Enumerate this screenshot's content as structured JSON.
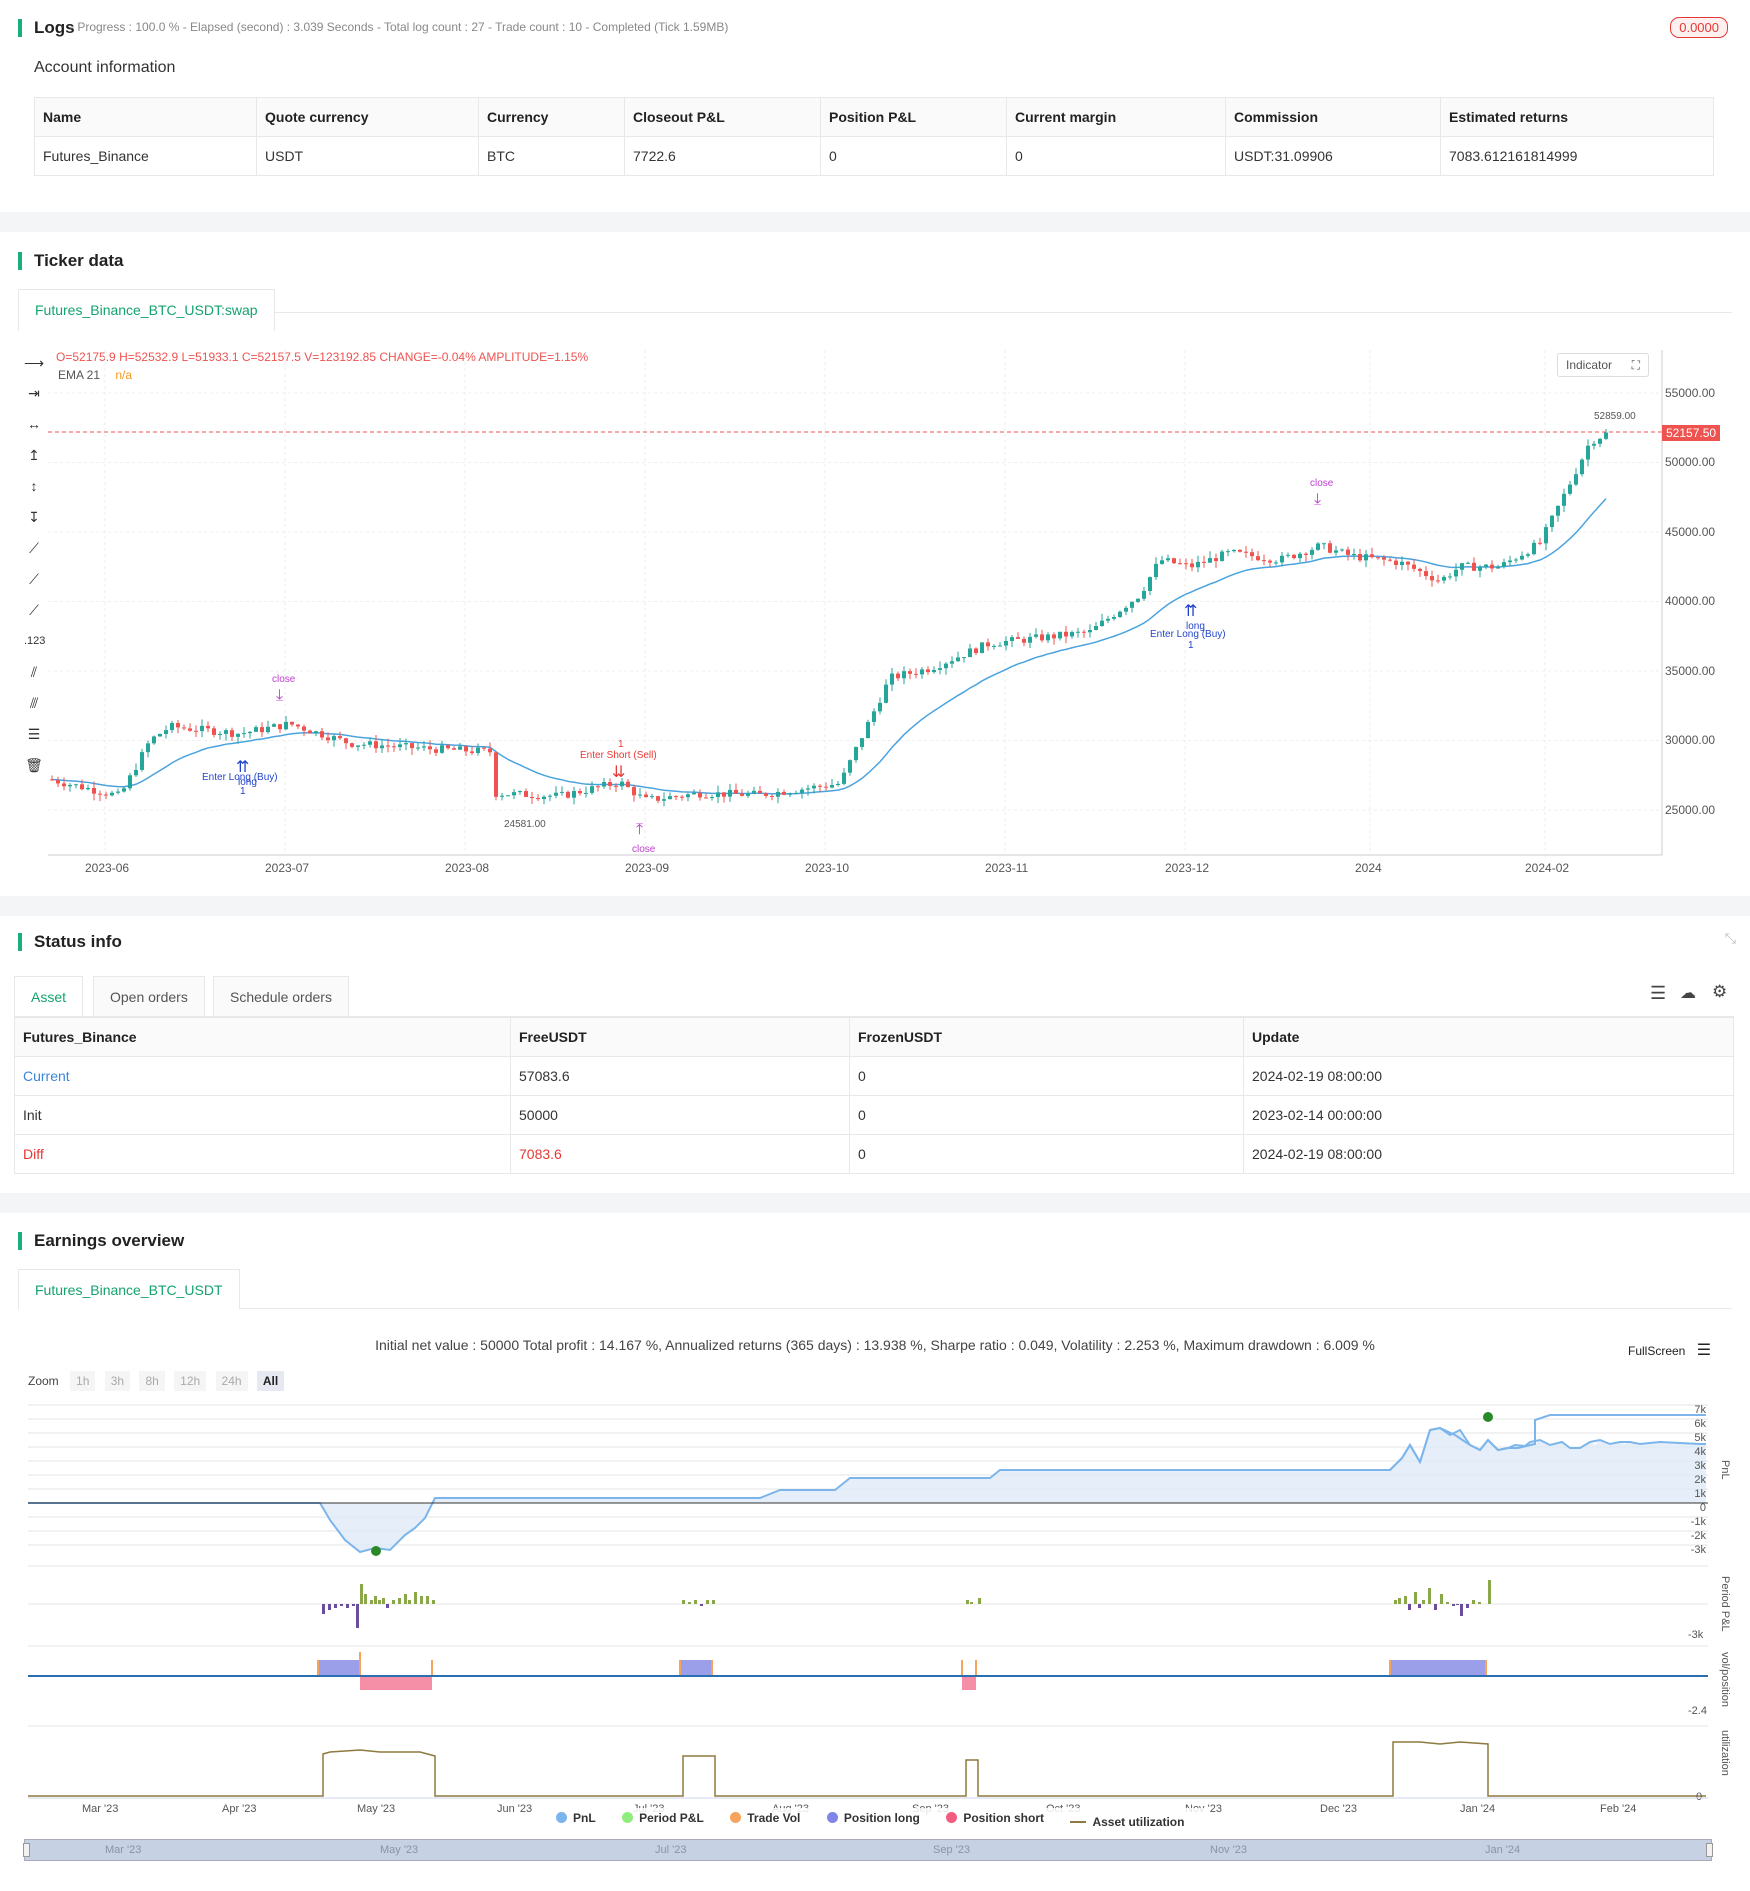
{
  "logs": {
    "title": "Logs",
    "status_line": "- Progress : 100.0 % - Elapsed (second) : 3.039  Seconds - Total log count : 27 - Trade count : 10 - Completed (Tick 1.59MB)",
    "badge": "0.0000",
    "account_title": "Account information",
    "columns": [
      "Name",
      "Quote currency",
      "Currency",
      "Closeout P&L",
      "Position P&L",
      "Current margin",
      "Commission",
      "Estimated returns"
    ],
    "row": [
      "Futures_Binance",
      "USDT",
      "BTC",
      "7722.6",
      "0",
      "0",
      "USDT:31.09906",
      "7083.612161814999"
    ]
  },
  "ticker": {
    "title": "Ticker data",
    "tab": "Futures_Binance_BTC_USDT:swap",
    "ohlc": {
      "o": "O=52175.9",
      "h": "H=52532.9",
      "l": "L=51933.1",
      "c": "C=52157.5",
      "v": "V=123192.85",
      "change": "CHANGE=-0.04%",
      "amplitude": "AMPLITUDE=1.15%"
    },
    "ema_label": "EMA 21",
    "ema_value": "n/a",
    "indicator_btn": "Indicator",
    "price_tag": "52157.50",
    "high_mark": "52859.00",
    "low_mark": "24581.00",
    "y_ticks": [
      "55000.00",
      "50000.00",
      "45000.00",
      "40000.00",
      "35000.00",
      "30000.00",
      "25000.00"
    ],
    "x_ticks": [
      "2023-06",
      "2023-07",
      "2023-08",
      "2023-09",
      "2023-10",
      "2023-11",
      "2023-12",
      "2024",
      "2024-02"
    ],
    "annotations": {
      "close1": "close",
      "enter_long1": "Enter Long (Buy)",
      "long1": "long",
      "one1": "1",
      "enter_short": "Enter Short (Sell)",
      "short_one": "1",
      "close2": "close",
      "close3": "close",
      "enter_long2": "Enter Long (Buy)",
      "long2": "long",
      "one2": "1"
    },
    "colors": {
      "up": "#26a69a",
      "down": "#ef5350",
      "ema": "#4aa3df",
      "price_line": "#ef5350"
    }
  },
  "status": {
    "title": "Status info",
    "tabs": [
      "Asset",
      "Open orders",
      "Schedule orders"
    ],
    "columns": [
      "Futures_Binance",
      "FreeUSDT",
      "FrozenUSDT",
      "Update"
    ],
    "rows": [
      [
        "Current",
        "57083.6",
        "0",
        "2024-02-19 08:00:00"
      ],
      [
        "Init",
        "50000",
        "0",
        "2023-02-14 00:00:00"
      ],
      [
        "Diff",
        "7083.6",
        "0",
        "2024-02-19 08:00:00"
      ]
    ]
  },
  "earnings": {
    "title": "Earnings overview",
    "tab": "Futures_Binance_BTC_USDT",
    "summary": "Initial net value : 50000 Total profit : 14.167 %, Annualized returns (365 days) : 13.938 %, Sharpe ratio : 0.049, Volatility : 2.253 %, Maximum drawdown : 6.009 %",
    "fullscreen": "FullScreen",
    "zoom_label": "Zoom",
    "zoom_options": [
      "1h",
      "3h",
      "8h",
      "12h",
      "24h",
      "All"
    ],
    "pnl_ticks": [
      "7k",
      "6k",
      "5k",
      "4k",
      "3k",
      "2k",
      "1k",
      "0",
      "-1k",
      "-2k",
      "-3k"
    ],
    "axis_titles": {
      "pnl": "PnL",
      "period": "Period P&L",
      "vol": "vol/position",
      "util": "utilization"
    },
    "period_min": "-3k",
    "vol_min": "-2.4",
    "util_zero": "0",
    "x_ticks": [
      "Mar '23",
      "Apr '23",
      "May '23",
      "Jun '23",
      "Jul '23",
      "Aug '23",
      "Sep '23",
      "Oct '23",
      "Nov '23",
      "Dec '23",
      "Jan '24",
      "Feb '24"
    ],
    "nav_ticks": [
      "Mar '23",
      "May '23",
      "Jul '23",
      "Sep '23",
      "Nov '23",
      "Jan '24"
    ],
    "legend": [
      {
        "label": "PnL",
        "color": "#7cb5ec"
      },
      {
        "label": "Period P&L",
        "color": "#90ed7d"
      },
      {
        "label": "Trade Vol",
        "color": "#f7a35c"
      },
      {
        "label": "Position long",
        "color": "#8085e9"
      },
      {
        "label": "Position short",
        "color": "#f15c80"
      },
      {
        "label": "Asset utilization",
        "color": "#8d7a3e"
      }
    ]
  }
}
